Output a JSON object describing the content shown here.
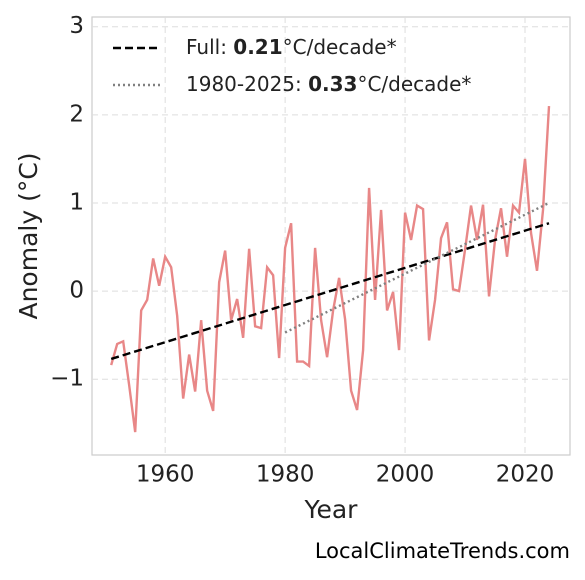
{
  "chart_data": {
    "type": "line",
    "x_label": "Year",
    "y_label": "Anomaly (°C)",
    "source": "LocalClimateTrends.com",
    "xlim": [
      1947.8,
      2027.5
    ],
    "ylim": [
      -1.86,
      3.11
    ],
    "xticks": [
      1960,
      1980,
      2000,
      2020
    ],
    "yticks": [
      {
        "value": -1,
        "label": "−1"
      },
      0,
      1,
      2,
      3
    ],
    "grid": true,
    "legend_position": "upper left",
    "series": [
      {
        "color": "#e88787",
        "x": [
          1951,
          1952,
          1953,
          1954,
          1955,
          1956,
          1957,
          1958,
          1959,
          1960,
          1961,
          1962,
          1963,
          1964,
          1965,
          1966,
          1967,
          1968,
          1969,
          1970,
          1971,
          1972,
          1973,
          1974,
          1975,
          1976,
          1977,
          1978,
          1979,
          1980,
          1981,
          1982,
          1983,
          1984,
          1985,
          1986,
          1987,
          1988,
          1989,
          1990,
          1991,
          1992,
          1993,
          1994,
          1995,
          1996,
          1997,
          1998,
          1999,
          2000,
          2001,
          2002,
          2003,
          2004,
          2005,
          2006,
          2007,
          2008,
          2009,
          2010,
          2011,
          2012,
          2013,
          2014,
          2015,
          2016,
          2017,
          2018,
          2019,
          2020,
          2021,
          2022,
          2023,
          2024
        ],
        "values": [
          -0.84,
          -0.6,
          -0.57,
          -1.07,
          -1.6,
          -0.22,
          -0.1,
          0.37,
          0.06,
          0.39,
          0.27,
          -0.28,
          -1.22,
          -0.72,
          -1.14,
          -0.33,
          -1.13,
          -1.36,
          0.1,
          0.46,
          -0.33,
          -0.09,
          -0.53,
          0.48,
          -0.4,
          -0.42,
          0.27,
          0.18,
          -0.76,
          0.49,
          0.77,
          -0.8,
          -0.8,
          -0.85,
          0.49,
          -0.33,
          -0.75,
          -0.22,
          0.15,
          -0.32,
          -1.13,
          -1.35,
          -0.67,
          1.17,
          -0.1,
          0.92,
          -0.22,
          -0.01,
          -0.67,
          0.89,
          0.58,
          0.97,
          0.93,
          -0.56,
          -0.1,
          0.6,
          0.78,
          0.02,
          0.0,
          0.47,
          0.97,
          0.58,
          0.98,
          -0.06,
          0.58,
          0.94,
          0.39,
          0.97,
          0.89,
          1.5,
          0.66,
          0.23,
          0.92,
          2.1
        ]
      },
      {
        "name": [
          "Full: ",
          "0.21",
          "°C/decade*"
        ],
        "color": "#000000",
        "style": "dashed",
        "x": [
          1951,
          2024
        ],
        "values": [
          -0.77,
          0.77
        ]
      },
      {
        "name": [
          "1980-2025: ",
          "0.33",
          "°C/decade*"
        ],
        "color": "#808080",
        "style": "dotted",
        "x": [
          1980,
          2024
        ],
        "values": [
          -0.47,
          1.0
        ]
      }
    ]
  }
}
